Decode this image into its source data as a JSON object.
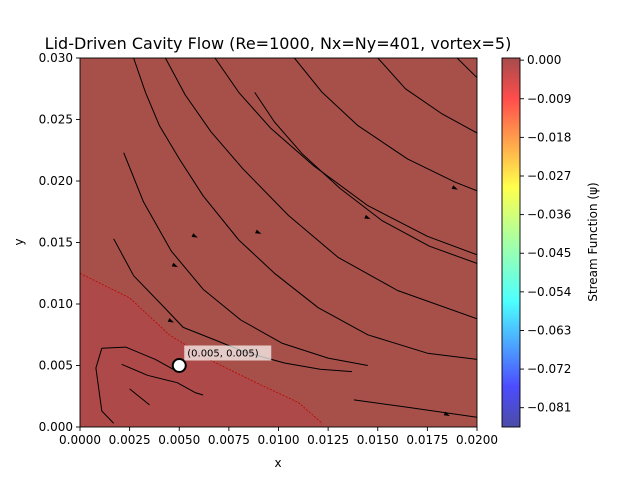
{
  "chart_data": {
    "type": "contour",
    "title": "Lid-Driven Cavity Flow (Re=1000, Nx=Ny=401, vortex=5)",
    "xlabel": "x",
    "ylabel": "y",
    "xlim": [
      0.0,
      0.02
    ],
    "ylim": [
      0.0,
      0.03
    ],
    "x_ticks": [
      "0.0000",
      "0.0025",
      "0.0050",
      "0.0075",
      "0.0100",
      "0.0125",
      "0.0150",
      "0.0175",
      "0.0200"
    ],
    "y_ticks": [
      "0.000",
      "0.005",
      "0.010",
      "0.015",
      "0.020",
      "0.025",
      "0.030"
    ],
    "colorbar": {
      "label": "Stream Function (ψ)",
      "colormap": "jet",
      "range": [
        -0.0855,
        0.0005
      ],
      "ticks": [
        "0.000",
        "−0.009",
        "−0.018",
        "−0.027",
        "−0.036",
        "−0.045",
        "−0.054",
        "−0.063",
        "−0.072",
        "−0.081"
      ]
    },
    "fill_colors": {
      "main": "#a65049",
      "lower_band": "#ad4a49"
    },
    "marker": {
      "x": 0.005,
      "y": 0.005,
      "label": "(0.005, 0.005)"
    },
    "streamlines": [
      [
        [
          0.0025,
          0.0031
        ],
        [
          0.0035,
          0.0018
        ]
      ],
      [
        [
          0.0021,
          0.0051
        ],
        [
          0.0034,
          0.0042
        ],
        [
          0.0049,
          0.0036
        ],
        [
          0.0058,
          0.0028
        ],
        [
          0.0062,
          0.0026
        ]
      ],
      [
        [
          0.0017,
          0.0003
        ],
        [
          0.0011,
          0.0013
        ],
        [
          0.0008,
          0.0048
        ],
        [
          0.0011,
          0.0064
        ],
        [
          0.0023,
          0.0065
        ],
        [
          0.0038,
          0.0055
        ],
        [
          0.0048,
          0.0046
        ]
      ],
      [
        [
          0.0017,
          0.0153
        ],
        [
          0.0027,
          0.0123
        ],
        [
          0.0042,
          0.0098
        ],
        [
          0.0052,
          0.0081
        ],
        [
          0.0066,
          0.0072
        ],
        [
          0.0083,
          0.0061
        ],
        [
          0.0103,
          0.0052
        ],
        [
          0.0121,
          0.0047
        ],
        [
          0.0137,
          0.0045
        ]
      ],
      [
        [
          0.0022,
          0.0223
        ],
        [
          0.0032,
          0.0183
        ],
        [
          0.0046,
          0.0143
        ],
        [
          0.0062,
          0.0112
        ],
        [
          0.0081,
          0.0087
        ],
        [
          0.0102,
          0.0068
        ],
        [
          0.0125,
          0.0056
        ],
        [
          0.0145,
          0.005
        ]
      ],
      [
        [
          0.0088,
          0.0272
        ],
        [
          0.0098,
          0.0248
        ],
        [
          0.0112,
          0.0222
        ],
        [
          0.0131,
          0.0194
        ],
        [
          0.0152,
          0.0168
        ],
        [
          0.0176,
          0.0147
        ],
        [
          0.02,
          0.0133
        ]
      ],
      [
        [
          0.0138,
          0.0022
        ],
        [
          0.0165,
          0.0016
        ],
        [
          0.02,
          0.0008
        ]
      ],
      [
        [
          0.0027,
          0.03
        ],
        [
          0.0033,
          0.0272
        ],
        [
          0.004,
          0.0245
        ],
        [
          0.005,
          0.0218
        ],
        [
          0.0062,
          0.0188
        ],
        [
          0.008,
          0.0152
        ],
        [
          0.0098,
          0.0125
        ],
        [
          0.012,
          0.0097
        ],
        [
          0.0145,
          0.0075
        ],
        [
          0.0175,
          0.006
        ],
        [
          0.02,
          0.0055
        ]
      ],
      [
        [
          0.0043,
          0.03
        ],
        [
          0.0053,
          0.027
        ],
        [
          0.0066,
          0.024
        ],
        [
          0.0082,
          0.021
        ],
        [
          0.0105,
          0.0172
        ],
        [
          0.013,
          0.0138
        ],
        [
          0.016,
          0.0111
        ],
        [
          0.02,
          0.0088
        ]
      ],
      [
        [
          0.0068,
          0.03
        ],
        [
          0.008,
          0.0272
        ],
        [
          0.0096,
          0.0243
        ],
        [
          0.0118,
          0.0212
        ],
        [
          0.0145,
          0.018
        ],
        [
          0.0175,
          0.0155
        ],
        [
          0.02,
          0.014
        ]
      ],
      [
        [
          0.0108,
          0.03
        ],
        [
          0.0122,
          0.0272
        ],
        [
          0.014,
          0.0245
        ],
        [
          0.0165,
          0.0218
        ],
        [
          0.0189,
          0.0199
        ],
        [
          0.02,
          0.0192
        ]
      ],
      [
        [
          0.015,
          0.03
        ],
        [
          0.0164,
          0.0275
        ],
        [
          0.0182,
          0.0255
        ],
        [
          0.02,
          0.0239
        ]
      ],
      [
        [
          0.019,
          0.03
        ],
        [
          0.02,
          0.0284
        ]
      ]
    ],
    "arrows": [
      {
        "x": 0.0058,
        "y": 0.0155,
        "dir": 1
      },
      {
        "x": 0.009,
        "y": 0.0158,
        "dir": 1
      },
      {
        "x": 0.0145,
        "y": 0.017,
        "dir": 1
      },
      {
        "x": 0.0189,
        "y": 0.0194,
        "dir": 1
      },
      {
        "x": 0.0048,
        "y": 0.0131,
        "dir": 1
      },
      {
        "x": 0.0046,
        "y": 0.0086,
        "dir": 1
      },
      {
        "x": 0.0185,
        "y": 0.001,
        "dir": 1
      }
    ],
    "dashed_line": [
      [
        0.0,
        0.0125
      ],
      [
        0.0025,
        0.0105
      ],
      [
        0.0045,
        0.0075
      ],
      [
        0.0065,
        0.0055
      ],
      [
        0.009,
        0.0035
      ],
      [
        0.011,
        0.002
      ],
      [
        0.0122,
        0.0003
      ]
    ],
    "lower_band": [
      [
        0.0,
        0.0
      ],
      [
        0.0,
        0.0125
      ],
      [
        0.0025,
        0.0105
      ],
      [
        0.0045,
        0.0075
      ],
      [
        0.0065,
        0.0055
      ],
      [
        0.009,
        0.0035
      ],
      [
        0.011,
        0.002
      ],
      [
        0.0122,
        0.0003
      ],
      [
        0.0123,
        0.0
      ]
    ]
  }
}
